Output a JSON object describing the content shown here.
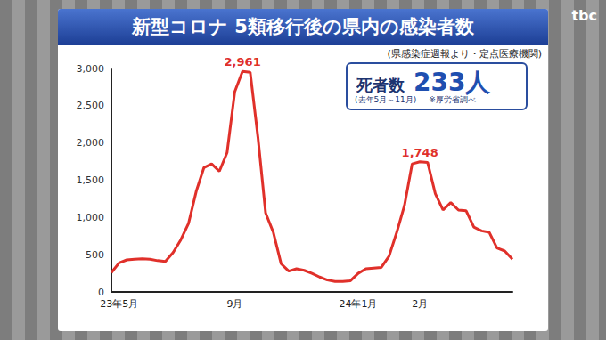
{
  "chart_data": {
    "type": "line",
    "title": "新型コロナ 5類移行後の県内の感染者数",
    "subtitle": "(県感染症週報より・定点医療機関)",
    "categories": [
      null,
      "23年5月",
      null,
      null,
      null,
      null,
      null,
      null,
      null,
      null,
      null,
      null,
      null,
      null,
      null,
      null,
      "9月",
      null,
      null,
      null,
      null,
      null,
      null,
      null,
      null,
      null,
      null,
      null,
      null,
      null,
      null,
      null,
      "24年1月",
      null,
      null,
      null,
      null,
      null,
      null,
      null,
      "2月",
      null,
      null,
      null,
      null,
      null,
      null,
      null,
      null,
      null,
      null,
      null,
      null
    ],
    "values": [
      260,
      390,
      430,
      440,
      445,
      440,
      420,
      410,
      530,
      700,
      920,
      1350,
      1670,
      1720,
      1620,
      1870,
      2690,
      2961,
      2950,
      2080,
      1060,
      800,
      380,
      280,
      310,
      290,
      250,
      200,
      160,
      140,
      140,
      150,
      250,
      310,
      320,
      330,
      480,
      800,
      1160,
      1720,
      1748,
      1740,
      1320,
      1100,
      1200,
      1100,
      1090,
      870,
      820,
      800,
      590,
      550,
      440
    ],
    "color": "#e0302a",
    "ylim": [
      0,
      3000
    ],
    "yticks": [
      0,
      500,
      {
        "value": 1000,
        "label": "1,000"
      },
      {
        "value": 1500,
        "label": "1,500"
      },
      {
        "value": 2000,
        "label": "2,000"
      },
      {
        "value": 2500,
        "label": "2,500"
      },
      {
        "value": 3000,
        "label": "3,000"
      }
    ],
    "grid": false,
    "annotations": [
      {
        "index": 17,
        "value": 2961,
        "label": "2,961"
      },
      {
        "index": 40,
        "value": 1748,
        "label": "1,748"
      }
    ],
    "deaths": {
      "label": "死者数",
      "value": 233,
      "unit": "人",
      "period": "(去年5月～11月)",
      "note": "※厚労省調べ"
    },
    "logo": "tbc"
  }
}
